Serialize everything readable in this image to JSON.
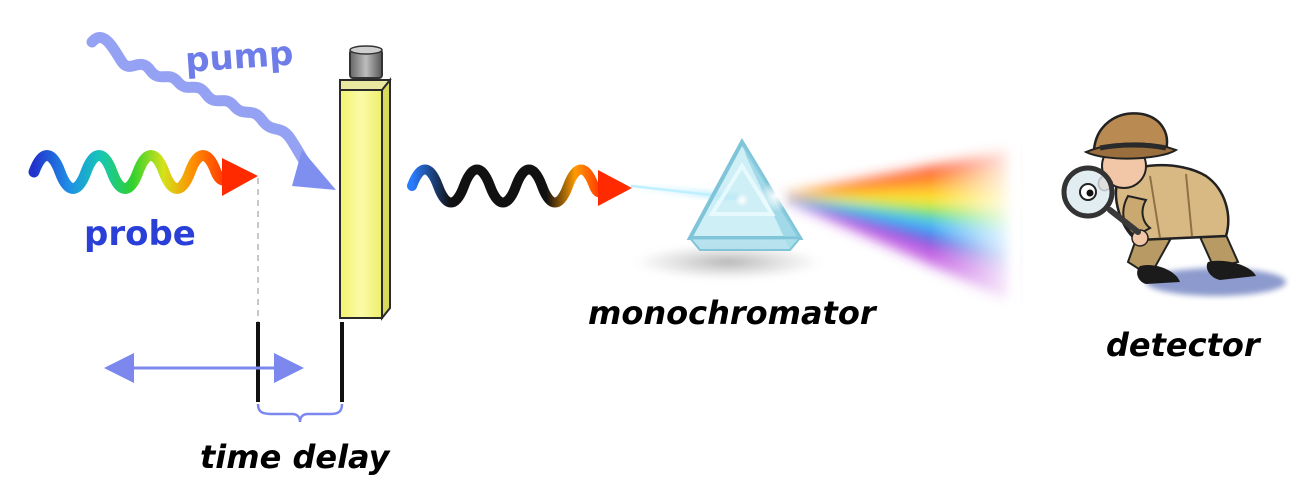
{
  "labels": {
    "pump": "pump",
    "probe": "probe",
    "time_delay": "time delay",
    "monochromator": "monochromator",
    "detector": "detector"
  },
  "colors": {
    "pump": "#7f8ff0",
    "delay": "#7c88ee",
    "sample_fill": "#f7f78a",
    "sample_edge": "#2a2a2a",
    "prism": "#9fd8e8"
  },
  "icons": {
    "prism": "triangular-prism-icon",
    "detector": "detective-with-magnifier-icon",
    "cuvette": "sample-cuvette-icon"
  }
}
